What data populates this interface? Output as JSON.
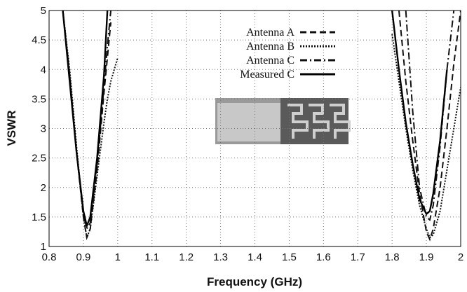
{
  "chart_data": {
    "type": "line",
    "xlabel": "Frequency (GHz)",
    "ylabel": "VSWR",
    "x": [
      0.84,
      0.86,
      0.88,
      0.9,
      0.91,
      0.92,
      0.94,
      0.96,
      0.97,
      0.98,
      1.0,
      1.4,
      1.8,
      1.82,
      1.84,
      1.86,
      1.88,
      1.9,
      1.91,
      1.92,
      1.94,
      1.96,
      1.98,
      2.0
    ],
    "series": [
      {
        "name": "Antenna A",
        "color": "#111111",
        "dash": "9,5",
        "values": [
          5,
          3.9,
          2.6,
          1.5,
          1.15,
          1.3,
          2.3,
          3.6,
          4.2,
          4.8,
          null,
          null,
          null,
          5,
          3.8,
          2.8,
          1.9,
          1.25,
          1.12,
          1.3,
          2.0,
          3.0,
          4.1,
          5
        ]
      },
      {
        "name": "Antenna B",
        "color": "#111111",
        "dash": "2,2",
        "values": [
          5,
          4.0,
          2.7,
          1.5,
          1.15,
          1.3,
          2.2,
          3.1,
          3.5,
          3.8,
          4.2,
          null,
          4.6,
          3.8,
          3.0,
          2.3,
          1.7,
          1.3,
          1.15,
          1.2,
          1.6,
          2.3,
          3.0,
          3.7
        ]
      },
      {
        "name": "Antenna C",
        "color": "#111111",
        "dash": "10,4,2,4",
        "values": [
          5,
          3.9,
          2.6,
          1.55,
          1.3,
          1.4,
          2.4,
          3.7,
          4.4,
          5,
          null,
          null,
          null,
          null,
          5,
          3.3,
          2.0,
          1.5,
          1.45,
          1.7,
          2.7,
          4.0,
          5,
          null
        ]
      },
      {
        "name": "Measured C",
        "color": "#000000",
        "dash": "none",
        "values": [
          5,
          3.8,
          2.6,
          1.6,
          1.35,
          1.5,
          2.5,
          3.9,
          5,
          null,
          null,
          null,
          5,
          4.0,
          3.1,
          2.4,
          1.8,
          1.55,
          1.6,
          1.9,
          2.8,
          4.0,
          null,
          null
        ]
      }
    ],
    "xlim": [
      0.8,
      2
    ],
    "ylim": [
      1,
      5
    ],
    "xticks": [
      0.8,
      0.9,
      1,
      1.1,
      1.2,
      1.3,
      1.4,
      1.5,
      1.6,
      1.7,
      1.8,
      1.9,
      2
    ],
    "yticks": [
      1,
      1.5,
      2,
      2.5,
      3,
      3.5,
      4,
      4.5,
      5
    ],
    "grid": true,
    "legend": "upper center"
  }
}
